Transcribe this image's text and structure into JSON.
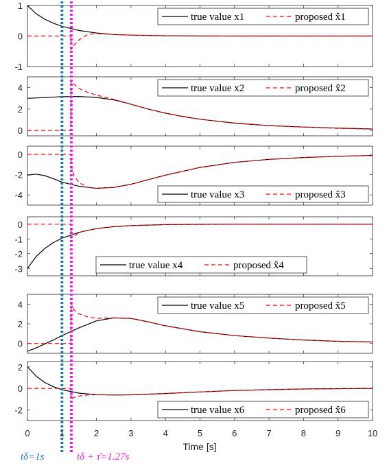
{
  "figure": {
    "xlabel": "Time [s]",
    "xticks": [
      "0",
      "1",
      "2",
      "3",
      "4",
      "5",
      "6",
      "7",
      "8",
      "9",
      "10"
    ],
    "xlim": [
      0,
      10
    ],
    "annotations": [
      {
        "t": 1.0,
        "label": "tδ=1s",
        "color": "#1f77b4",
        "style": "dotted"
      },
      {
        "t": 1.27,
        "label": "tδ + τ̄=1.27s",
        "color": "#e020e0",
        "style": "dotted"
      }
    ]
  },
  "chart_data": [
    {
      "type": "line",
      "ylim": [
        -1,
        1
      ],
      "yticks": [
        "1",
        "0",
        "-1"
      ],
      "yticklabels": [
        1,
        0,
        -1
      ],
      "legend_pos": "top-right",
      "series": [
        {
          "name": "true value x1",
          "color": "#000000",
          "style": "solid",
          "x": [
            0,
            0.25,
            0.5,
            0.75,
            1,
            1.5,
            2,
            2.5,
            3,
            4,
            5,
            6,
            8,
            10
          ],
          "y": [
            1.0,
            0.73,
            0.55,
            0.42,
            0.32,
            0.18,
            0.1,
            0.05,
            0.03,
            0.01,
            0.0,
            0.0,
            0.0,
            0.0
          ]
        },
        {
          "name": "proposed x̂1",
          "color": "#ff0000",
          "style": "dashed",
          "x": [
            0,
            1.26,
            1.27,
            1.35,
            1.5,
            1.75,
            2,
            2.5,
            3,
            4,
            6,
            10
          ],
          "y": [
            0,
            0,
            -0.45,
            -0.3,
            -0.12,
            0.05,
            0.08,
            0.05,
            0.03,
            0.01,
            0.0,
            0.0
          ]
        }
      ]
    },
    {
      "type": "line",
      "ylim": [
        -0.5,
        5
      ],
      "yticks": [
        "4",
        "2",
        "0"
      ],
      "yticklabels": [
        4,
        2,
        0
      ],
      "legend_pos": "top-right",
      "series": [
        {
          "name": "true value x2",
          "color": "#000000",
          "style": "solid",
          "x": [
            0,
            0.5,
            1,
            1.5,
            2,
            2.5,
            3,
            3.5,
            4,
            4.5,
            5,
            6,
            7,
            8,
            9,
            10
          ],
          "y": [
            3.0,
            3.07,
            3.15,
            3.17,
            3.08,
            2.85,
            2.45,
            2.0,
            1.62,
            1.3,
            1.05,
            0.68,
            0.45,
            0.32,
            0.22,
            0.14
          ]
        },
        {
          "name": "proposed x̂2",
          "color": "#ff0000",
          "style": "dashed",
          "x": [
            0,
            1.26,
            1.27,
            1.35,
            1.5,
            1.75,
            2,
            2.5,
            3,
            3.5,
            4,
            5,
            6,
            7,
            8,
            9,
            10
          ],
          "y": [
            0,
            0,
            4.6,
            4.3,
            3.9,
            3.55,
            3.3,
            2.9,
            2.45,
            2.0,
            1.6,
            1.05,
            0.7,
            0.45,
            0.32,
            0.2,
            0.12
          ]
        }
      ]
    },
    {
      "type": "line",
      "ylim": [
        -5,
        0.8
      ],
      "yticks": [
        "0",
        "-2",
        "-4"
      ],
      "yticklabels": [
        0,
        -2,
        -4
      ],
      "legend_pos": "bottom-right",
      "series": [
        {
          "name": "true value x3",
          "color": "#000000",
          "style": "solid",
          "x": [
            0,
            0.25,
            0.5,
            0.75,
            1,
            1.5,
            2,
            2.5,
            3,
            3.5,
            4,
            5,
            6,
            7,
            8,
            9,
            10
          ],
          "y": [
            -2.05,
            -1.95,
            -2.1,
            -2.4,
            -2.75,
            -3.15,
            -3.35,
            -3.25,
            -2.95,
            -2.5,
            -2.05,
            -1.3,
            -0.8,
            -0.5,
            -0.32,
            -0.2,
            -0.12
          ]
        },
        {
          "name": "proposed x̂3",
          "color": "#ff0000",
          "style": "dashed",
          "x": [
            0,
            1.26,
            1.27,
            1.35,
            1.5,
            1.75,
            2,
            2.5,
            3,
            3.5,
            4,
            5,
            6,
            7,
            8,
            9,
            10
          ],
          "y": [
            0,
            0,
            -1.2,
            -2.1,
            -2.8,
            -3.25,
            -3.35,
            -3.25,
            -2.95,
            -2.5,
            -2.05,
            -1.3,
            -0.8,
            -0.5,
            -0.32,
            -0.2,
            -0.12
          ]
        }
      ]
    },
    {
      "type": "line",
      "ylim": [
        -3.5,
        0.5
      ],
      "yticks": [
        "0",
        "-1",
        "-2",
        "-3"
      ],
      "yticklabels": [
        0,
        -1,
        -2,
        -3
      ],
      "legend_pos": "bottom-center",
      "series": [
        {
          "name": "true value x4",
          "color": "#000000",
          "style": "solid",
          "x": [
            0,
            0.25,
            0.5,
            0.75,
            1,
            1.5,
            2,
            2.5,
            3,
            4,
            5,
            6,
            8,
            10
          ],
          "y": [
            -3.0,
            -2.2,
            -1.65,
            -1.25,
            -0.95,
            -0.55,
            -0.3,
            -0.17,
            -0.1,
            -0.03,
            -0.01,
            0,
            0,
            0
          ]
        },
        {
          "name": "proposed x̂4",
          "color": "#ff0000",
          "style": "dashed",
          "x": [
            0,
            1.26,
            1.27,
            1.35,
            1.5,
            1.75,
            2,
            2.5,
            3,
            4,
            5,
            10
          ],
          "y": [
            0,
            0,
            -0.95,
            -0.85,
            -0.55,
            -0.42,
            -0.3,
            -0.17,
            -0.1,
            -0.03,
            0,
            0
          ]
        }
      ]
    },
    {
      "type": "line",
      "ylim": [
        -1,
        5
      ],
      "yticks": [
        "4",
        "2",
        "0"
      ],
      "yticklabels": [
        4,
        2,
        0
      ],
      "legend_pos": "top-right",
      "series": [
        {
          "name": "true value x5",
          "color": "#000000",
          "style": "solid",
          "x": [
            0,
            0.25,
            0.5,
            0.75,
            1,
            1.5,
            2,
            2.5,
            3,
            3.5,
            4,
            5,
            6,
            7,
            8,
            9,
            10
          ],
          "y": [
            -0.8,
            -0.45,
            -0.05,
            0.35,
            0.8,
            1.6,
            2.3,
            2.6,
            2.55,
            2.2,
            1.8,
            1.2,
            0.8,
            0.55,
            0.35,
            0.22,
            0.15
          ]
        },
        {
          "name": "proposed x̂5",
          "color": "#ff0000",
          "style": "dashed",
          "x": [
            0,
            1.26,
            1.27,
            1.35,
            1.5,
            1.75,
            2,
            2.5,
            3,
            3.5,
            4,
            5,
            6,
            7,
            8,
            9,
            10
          ],
          "y": [
            0,
            0,
            4.1,
            3.4,
            3.0,
            2.7,
            2.55,
            2.6,
            2.55,
            2.2,
            1.8,
            1.2,
            0.8,
            0.55,
            0.35,
            0.22,
            0.15
          ]
        }
      ]
    },
    {
      "type": "line",
      "ylim": [
        -3,
        2.5
      ],
      "yticks": [
        "2",
        "0",
        "-2"
      ],
      "yticklabels": [
        2,
        0,
        -2
      ],
      "legend_pos": "bottom-right",
      "series": [
        {
          "name": "true value x6",
          "color": "#000000",
          "style": "solid",
          "x": [
            0,
            0.25,
            0.5,
            0.75,
            1,
            1.5,
            2,
            2.5,
            3,
            4,
            5,
            6,
            7,
            8,
            10
          ],
          "y": [
            2.0,
            1.15,
            0.55,
            0.15,
            -0.12,
            -0.45,
            -0.58,
            -0.62,
            -0.6,
            -0.48,
            -0.33,
            -0.2,
            -0.12,
            -0.06,
            0.0
          ]
        },
        {
          "name": "proposed x̂6",
          "color": "#ff0000",
          "style": "dashed",
          "x": [
            0,
            1.26,
            1.27,
            1.35,
            1.5,
            1.75,
            2,
            2.5,
            3,
            4,
            5,
            6,
            7,
            8,
            10
          ],
          "y": [
            0,
            0,
            -1.0,
            -0.85,
            -0.72,
            -0.62,
            -0.6,
            -0.62,
            -0.6,
            -0.48,
            -0.33,
            -0.2,
            -0.12,
            -0.06,
            0.0
          ]
        }
      ]
    }
  ]
}
